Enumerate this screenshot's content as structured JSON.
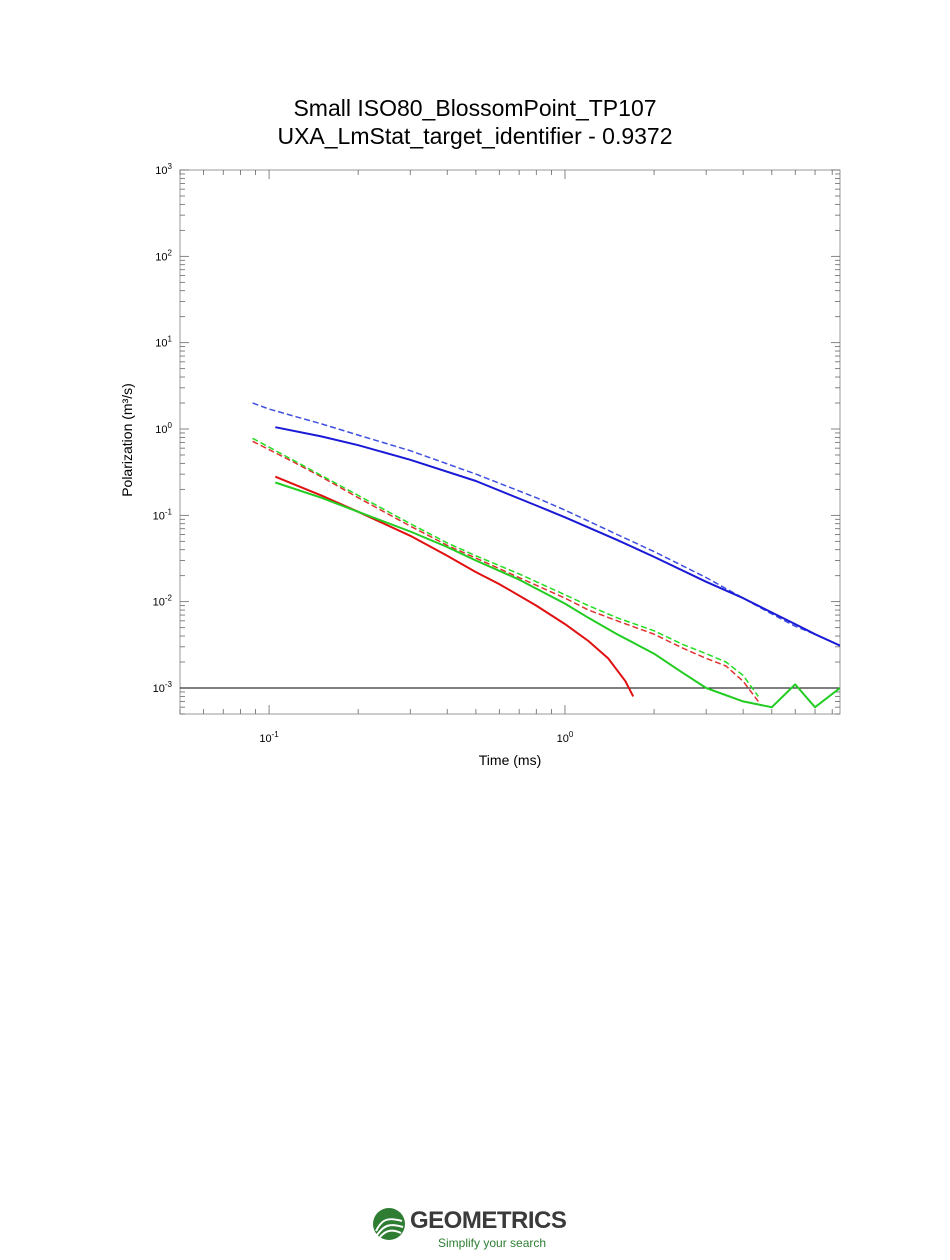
{
  "chart_data": {
    "type": "line",
    "title": "Small ISO80_BlossomPoint_TP107",
    "subtitle": "UXA_LmStat_target_identifier - 0.9372",
    "xlabel": "Time (ms)",
    "ylabel": "Polarization (m³/s)",
    "xscale": "log",
    "yscale": "log",
    "xlim": [
      0.05,
      8.5
    ],
    "ylim": [
      0.0005,
      1000
    ],
    "x_tick_labels": [
      {
        "base": "10",
        "exp": "-1",
        "value": 0.1
      },
      {
        "base": "10",
        "exp": "0",
        "value": 1
      }
    ],
    "y_tick_labels": [
      {
        "base": "10",
        "exp": "3",
        "value": 1000
      },
      {
        "base": "10",
        "exp": "2",
        "value": 100
      },
      {
        "base": "10",
        "exp": "1",
        "value": 10
      },
      {
        "base": "10",
        "exp": "0",
        "value": 1
      },
      {
        "base": "10",
        "exp": "-1",
        "value": 0.1
      },
      {
        "base": "10",
        "exp": "-2",
        "value": 0.01
      },
      {
        "base": "10",
        "exp": "-3",
        "value": 0.001
      }
    ],
    "reference_line_y": 0.001,
    "grid": false,
    "series": [
      {
        "color": "#3f4fe0",
        "style": "dashed",
        "width": 1.5,
        "x": [
          0.088,
          0.1,
          0.15,
          0.2,
          0.3,
          0.5,
          0.8,
          1.0,
          1.5,
          2.0,
          3.0,
          4.0,
          5.0,
          6.0,
          7.0,
          8.5
        ],
        "y": [
          2.0,
          1.7,
          1.15,
          0.85,
          0.56,
          0.3,
          0.16,
          0.115,
          0.06,
          0.038,
          0.019,
          0.011,
          0.0072,
          0.0052,
          0.0042,
          0.0031
        ]
      },
      {
        "color": "#1a1ad6",
        "style": "solid",
        "width": 2,
        "x": [
          0.105,
          0.15,
          0.2,
          0.3,
          0.5,
          0.8,
          1.0,
          1.5,
          2.0,
          3.0,
          4.0,
          5.0,
          6.0,
          7.0,
          8.5
        ],
        "y": [
          1.05,
          0.82,
          0.65,
          0.44,
          0.25,
          0.13,
          0.095,
          0.052,
          0.033,
          0.017,
          0.011,
          0.0075,
          0.0055,
          0.0042,
          0.0031
        ]
      },
      {
        "color": "#e03030",
        "style": "dashed",
        "width": 1.5,
        "x": [
          0.088,
          0.12,
          0.15,
          0.2,
          0.3,
          0.4,
          0.5,
          0.7,
          1.0,
          1.2,
          1.5,
          2.0,
          2.5,
          3.0,
          3.5,
          4.0,
          4.5
        ],
        "y": [
          0.72,
          0.42,
          0.28,
          0.16,
          0.075,
          0.045,
          0.032,
          0.019,
          0.011,
          0.008,
          0.006,
          0.0042,
          0.0029,
          0.0022,
          0.0018,
          0.0012,
          0.0007
        ]
      },
      {
        "color": "#22dd22",
        "style": "dashed",
        "width": 1.5,
        "x": [
          0.088,
          0.12,
          0.15,
          0.2,
          0.3,
          0.4,
          0.5,
          0.7,
          1.0,
          1.2,
          1.5,
          2.0,
          2.5,
          3.0,
          3.5,
          4.0,
          4.5
        ],
        "y": [
          0.78,
          0.44,
          0.29,
          0.17,
          0.08,
          0.048,
          0.034,
          0.021,
          0.012,
          0.009,
          0.0065,
          0.0046,
          0.0032,
          0.0025,
          0.002,
          0.0014,
          0.0008
        ]
      },
      {
        "color": "#e01010",
        "style": "solid",
        "width": 2,
        "x": [
          0.105,
          0.15,
          0.2,
          0.3,
          0.4,
          0.5,
          0.6,
          0.8,
          1.0,
          1.2,
          1.4,
          1.6,
          1.7
        ],
        "y": [
          0.28,
          0.17,
          0.11,
          0.058,
          0.034,
          0.022,
          0.016,
          0.009,
          0.0055,
          0.0035,
          0.0022,
          0.0012,
          0.0008
        ]
      },
      {
        "color": "#22cc22",
        "style": "solid",
        "width": 2,
        "x": [
          0.105,
          0.15,
          0.2,
          0.3,
          0.4,
          0.5,
          0.7,
          1.0,
          1.2,
          1.5,
          2.0,
          2.5,
          3.0,
          4.0,
          5.0,
          6.0,
          7.0,
          8.5
        ],
        "y": [
          0.24,
          0.16,
          0.11,
          0.065,
          0.043,
          0.03,
          0.018,
          0.0095,
          0.0065,
          0.0042,
          0.0025,
          0.0015,
          0.001,
          0.0007,
          0.0006,
          0.0011,
          0.0006,
          0.001
        ]
      }
    ]
  },
  "logo": {
    "name": "GEOMETRICS",
    "tagline": "Simplify your search"
  }
}
